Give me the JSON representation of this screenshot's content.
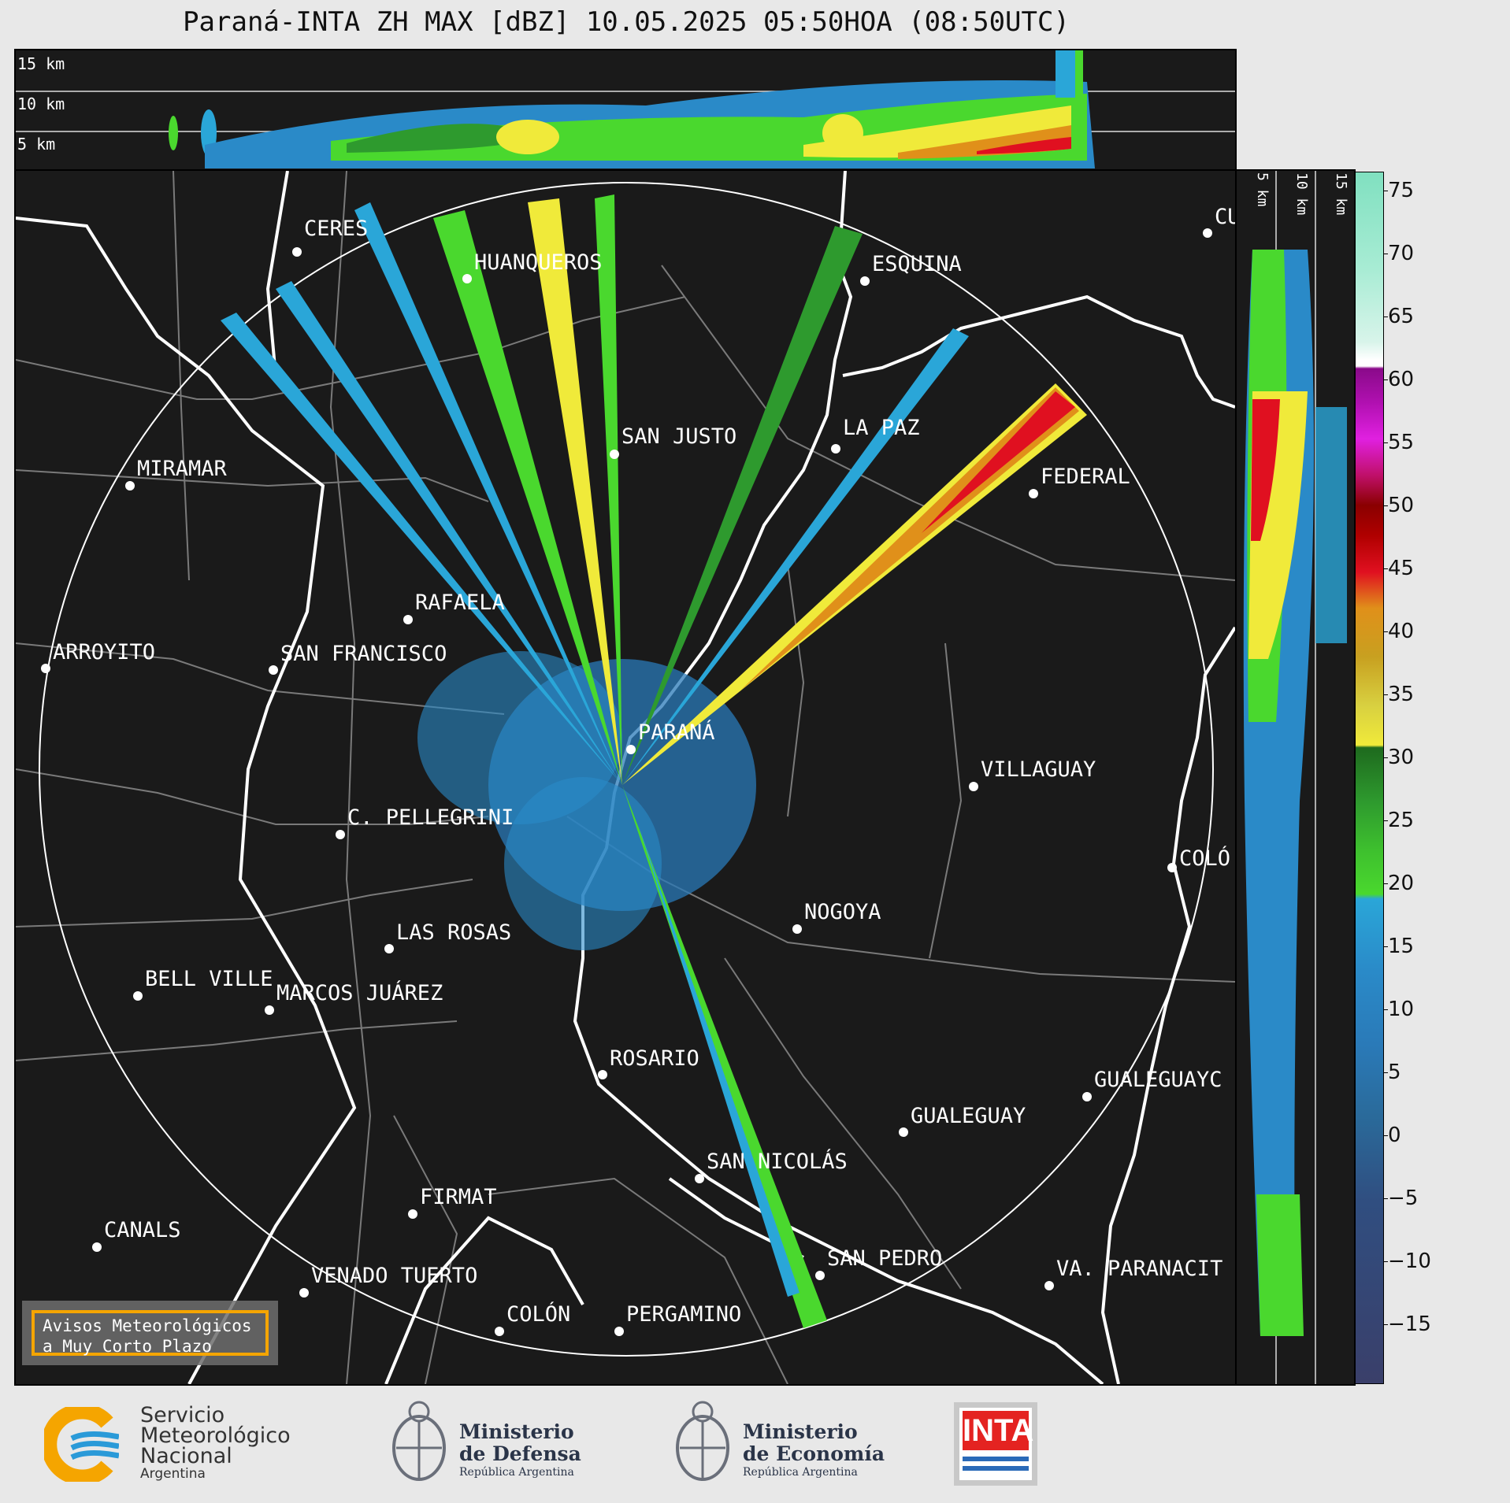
{
  "title": "Paraná-INTA ZH MAX [dBZ] 10.05.2025 05:50HOA (08:50UTC)",
  "top_panel": {
    "height_labels": [
      "15 km",
      "10 km",
      "5 km"
    ]
  },
  "side_panel": {
    "height_labels": [
      "5 km",
      "10 km",
      "15 km"
    ]
  },
  "colorbar": {
    "ticks": [
      "75",
      "70",
      "65",
      "60",
      "55",
      "50",
      "45",
      "40",
      "35",
      "30",
      "25",
      "20",
      "15",
      "10",
      "5",
      "0",
      "−5",
      "−10",
      "−15"
    ],
    "colors": {
      "low": "#3a3f6a",
      "blue_mid": "#2a7ab8",
      "blue_light": "#2aa6d8",
      "green_light": "#4ad82e",
      "green": "#2e9a2e",
      "green_dark": "#1e6a1e",
      "yellow": "#f0ea3a",
      "orange": "#e0901a",
      "red": "#e01020",
      "dark_red": "#8a0000",
      "magenta": "#e020e0",
      "purple": "#8a0a8a",
      "white": "#ffffff",
      "mint": "#80e0c0"
    }
  },
  "map": {
    "cities": [
      "CERES",
      "HUANQUEROS",
      "ESQUINA",
      "CU",
      "MIRAMAR",
      "SAN JUSTO",
      "LA PAZ",
      "FEDERAL",
      "RAFAELA",
      "ARROYITO",
      "SAN FRANCISCO",
      "PARANÁ",
      "VILLAGUAY",
      "C. PELLEGRINI",
      "COLÓ",
      "NOGOYA",
      "LAS ROSAS",
      "BELL VILLE",
      "MARCOS JUÁREZ",
      "ROSARIO",
      "GUALEGUAYC",
      "GUALEGUAY",
      "SAN NICOLÁS",
      "FIRMAT",
      "CANALS",
      "SAN PEDRO",
      "VENADO TUERTO",
      "VA. PARANACIT",
      "COLÓN",
      "PERGAMINO"
    ]
  },
  "alert": {
    "line1": "Avisos Meteorológicos",
    "line2": "a Muy Corto Plazo"
  },
  "logos": {
    "smn": {
      "line1": "Servicio",
      "line2": "Meteorológico",
      "line3": "Nacional",
      "line4": "Argentina"
    },
    "defensa": {
      "line1": "Ministerio",
      "line2": "de Defensa",
      "line3": "República Argentina"
    },
    "economia": {
      "line1": "Ministerio",
      "line2": "de Economía",
      "line3": "República Argentina"
    },
    "inta": {
      "text": "INTA"
    }
  }
}
